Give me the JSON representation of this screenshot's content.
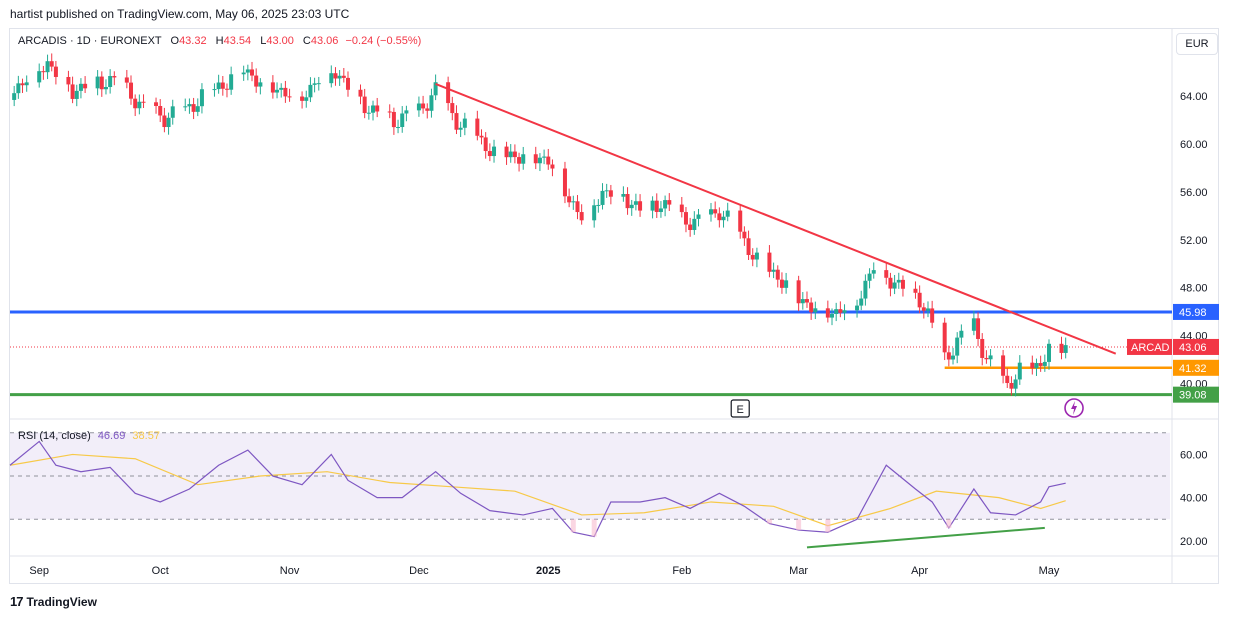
{
  "caption": "hartist published on TradingView.com, May 06, 2025 23:03 UTC",
  "legend": {
    "symbol": "ARCADIS · 1D · EURONEXT",
    "open_label": "O",
    "open": "43.32",
    "high_label": "H",
    "high": "43.54",
    "low_label": "L",
    "low": "43.00",
    "close_label": "C",
    "close": "43.06",
    "change": "−0.24 (−0.55%)"
  },
  "currency": "EUR",
  "rsi_legend": {
    "label": "RSI (14, close)",
    "rsi": "46.69",
    "ma": "38.57"
  },
  "footer": {
    "logo": "17",
    "brand": "TradingView"
  },
  "earnings_marker": "E",
  "colors": {
    "up": "#22ab94",
    "down": "#f23645",
    "trendline": "#f23645",
    "blue_line": "#2962ff",
    "green_line": "#43a047",
    "orange_line": "#ff9800",
    "rsi_line": "#7e57c2",
    "rsi_ma": "#f7c948",
    "rsi_band": "#ede7f6"
  },
  "chart_data": [
    {
      "type": "candlestick",
      "price_ticks": [
        "64.00",
        "60.00",
        "56.00",
        "52.00",
        "48.00",
        "44.00",
        "40.00"
      ],
      "price_tick_values": [
        64,
        60,
        56,
        52,
        48,
        44,
        40
      ],
      "ylim": [
        37.3,
        69.5
      ],
      "x_ticks": [
        "Sep",
        "Oct",
        "Nov",
        "Dec",
        "2025",
        "Feb",
        "Mar",
        "Apr",
        "May"
      ],
      "x_tick_dates": [
        "2024-09-02",
        "2024-10-01",
        "2024-11-01",
        "2024-12-02",
        "2025-01-02",
        "2025-02-03",
        "2025-03-03",
        "2025-04-01",
        "2025-05-02"
      ],
      "xlim": [
        "2024-08-26",
        "2025-05-31"
      ],
      "close_path": [
        {
          "date": "2024-08-26",
          "close": 64.1
        },
        {
          "date": "2024-08-30",
          "close": 65.6
        },
        {
          "date": "2024-09-04",
          "close": 66.8
        },
        {
          "date": "2024-09-10",
          "close": 64.5
        },
        {
          "date": "2024-09-16",
          "close": 65.2
        },
        {
          "date": "2024-09-20",
          "close": 65.4
        },
        {
          "date": "2024-09-24",
          "close": 64.2
        },
        {
          "date": "2024-09-27",
          "close": 63.0
        },
        {
          "date": "2024-10-02",
          "close": 62.3
        },
        {
          "date": "2024-10-07",
          "close": 62.8
        },
        {
          "date": "2024-10-11",
          "close": 64.0
        },
        {
          "date": "2024-10-16",
          "close": 65.0
        },
        {
          "date": "2024-10-21",
          "close": 66.3
        },
        {
          "date": "2024-10-25",
          "close": 65.2
        },
        {
          "date": "2024-10-30",
          "close": 64.5
        },
        {
          "date": "2024-11-04",
          "close": 64.0
        },
        {
          "date": "2024-11-08",
          "close": 65.5
        },
        {
          "date": "2024-11-12",
          "close": 66.2
        },
        {
          "date": "2024-11-15",
          "close": 64.8
        },
        {
          "date": "2024-11-20",
          "close": 63.0
        },
        {
          "date": "2024-11-26",
          "close": 62.0
        },
        {
          "date": "2024-12-02",
          "close": 62.8
        },
        {
          "date": "2024-12-06",
          "close": 64.5
        },
        {
          "date": "2024-12-11",
          "close": 62.0
        },
        {
          "date": "2024-12-16",
          "close": 60.6
        },
        {
          "date": "2024-12-20",
          "close": 59.3
        },
        {
          "date": "2024-12-27",
          "close": 59.0
        },
        {
          "date": "2025-01-02",
          "close": 58.8
        },
        {
          "date": "2025-01-07",
          "close": 55.5
        },
        {
          "date": "2025-01-10",
          "close": 54.0
        },
        {
          "date": "2025-01-15",
          "close": 56.0
        },
        {
          "date": "2025-01-20",
          "close": 55.8
        },
        {
          "date": "2025-01-24",
          "close": 54.5
        },
        {
          "date": "2025-01-29",
          "close": 55.2
        },
        {
          "date": "2025-02-03",
          "close": 53.8
        },
        {
          "date": "2025-02-07",
          "close": 53.5
        },
        {
          "date": "2025-02-12",
          "close": 54.5
        },
        {
          "date": "2025-02-17",
          "close": 52.5
        },
        {
          "date": "2025-02-21",
          "close": 50.3
        },
        {
          "date": "2025-02-26",
          "close": 49.0
        },
        {
          "date": "2025-03-03",
          "close": 47.2
        },
        {
          "date": "2025-03-07",
          "close": 46.3
        },
        {
          "date": "2025-03-12",
          "close": 46.0
        },
        {
          "date": "2025-03-17",
          "close": 47.0
        },
        {
          "date": "2025-03-21",
          "close": 49.8
        },
        {
          "date": "2025-03-26",
          "close": 48.5
        },
        {
          "date": "2025-04-01",
          "close": 47.2
        },
        {
          "date": "2025-04-03",
          "close": 45.8
        },
        {
          "date": "2025-04-07",
          "close": 42.2
        },
        {
          "date": "2025-04-10",
          "close": 43.5
        },
        {
          "date": "2025-04-14",
          "close": 45.0
        },
        {
          "date": "2025-04-17",
          "close": 42.0
        },
        {
          "date": "2025-04-22",
          "close": 40.0
        },
        {
          "date": "2025-04-25",
          "close": 41.0
        },
        {
          "date": "2025-04-29",
          "close": 41.5
        },
        {
          "date": "2025-05-02",
          "close": 42.8
        },
        {
          "date": "2025-05-06",
          "close": 43.06
        }
      ],
      "trendline": {
        "from": {
          "date": "2024-12-06",
          "price": 65.0
        },
        "to": {
          "date": "2025-05-18",
          "price": 42.5
        }
      },
      "levels": [
        {
          "price": 45.98,
          "label": "45.98",
          "color": "#2962ff"
        },
        {
          "price": 41.32,
          "label": "41.32",
          "color": "#ff9800",
          "from": "2025-04-07"
        },
        {
          "price": 39.08,
          "label": "39.08",
          "color": "#43a047"
        }
      ],
      "last_price": {
        "price": 43.06,
        "label": "43.06",
        "tag": "ARCAD"
      }
    },
    {
      "type": "line",
      "name": "RSI (14, close)",
      "yticks": [
        "60.00",
        "40.00",
        "20.00"
      ],
      "ytick_values": [
        60,
        40,
        20
      ],
      "ylim": [
        13,
        75
      ],
      "bands": [
        30,
        50,
        70
      ],
      "rsi": [
        {
          "date": "2024-08-26",
          "v": 55
        },
        {
          "date": "2024-09-02",
          "v": 66
        },
        {
          "date": "2024-09-06",
          "v": 55
        },
        {
          "date": "2024-09-12",
          "v": 52
        },
        {
          "date": "2024-09-19",
          "v": 54
        },
        {
          "date": "2024-09-25",
          "v": 42
        },
        {
          "date": "2024-10-01",
          "v": 38
        },
        {
          "date": "2024-10-08",
          "v": 44
        },
        {
          "date": "2024-10-15",
          "v": 55
        },
        {
          "date": "2024-10-22",
          "v": 62
        },
        {
          "date": "2024-10-28",
          "v": 50
        },
        {
          "date": "2024-11-04",
          "v": 46
        },
        {
          "date": "2024-11-11",
          "v": 60
        },
        {
          "date": "2024-11-15",
          "v": 48
        },
        {
          "date": "2024-11-22",
          "v": 40
        },
        {
          "date": "2024-11-28",
          "v": 40
        },
        {
          "date": "2024-12-06",
          "v": 52
        },
        {
          "date": "2024-12-12",
          "v": 42
        },
        {
          "date": "2024-12-19",
          "v": 34
        },
        {
          "date": "2024-12-27",
          "v": 32
        },
        {
          "date": "2025-01-03",
          "v": 35
        },
        {
          "date": "2025-01-08",
          "v": 24
        },
        {
          "date": "2025-01-13",
          "v": 22
        },
        {
          "date": "2025-01-17",
          "v": 38
        },
        {
          "date": "2025-01-24",
          "v": 38
        },
        {
          "date": "2025-01-30",
          "v": 40
        },
        {
          "date": "2025-02-05",
          "v": 35
        },
        {
          "date": "2025-02-12",
          "v": 42
        },
        {
          "date": "2025-02-18",
          "v": 36
        },
        {
          "date": "2025-02-24",
          "v": 28
        },
        {
          "date": "2025-03-03",
          "v": 25
        },
        {
          "date": "2025-03-10",
          "v": 24
        },
        {
          "date": "2025-03-17",
          "v": 30
        },
        {
          "date": "2025-03-24",
          "v": 55
        },
        {
          "date": "2025-03-31",
          "v": 44
        },
        {
          "date": "2025-04-04",
          "v": 38
        },
        {
          "date": "2025-04-08",
          "v": 26
        },
        {
          "date": "2025-04-14",
          "v": 44
        },
        {
          "date": "2025-04-18",
          "v": 33
        },
        {
          "date": "2025-04-24",
          "v": 32
        },
        {
          "date": "2025-04-30",
          "v": 38
        },
        {
          "date": "2025-05-02",
          "v": 45
        },
        {
          "date": "2025-05-06",
          "v": 46.69
        }
      ],
      "ma": [
        {
          "date": "2024-08-26",
          "v": 55
        },
        {
          "date": "2024-09-10",
          "v": 60
        },
        {
          "date": "2024-09-25",
          "v": 58
        },
        {
          "date": "2024-10-10",
          "v": 46
        },
        {
          "date": "2024-10-25",
          "v": 50
        },
        {
          "date": "2024-11-10",
          "v": 52
        },
        {
          "date": "2024-11-25",
          "v": 47
        },
        {
          "date": "2024-12-10",
          "v": 45
        },
        {
          "date": "2024-12-25",
          "v": 43
        },
        {
          "date": "2025-01-10",
          "v": 32
        },
        {
          "date": "2025-01-25",
          "v": 33
        },
        {
          "date": "2025-02-10",
          "v": 38
        },
        {
          "date": "2025-02-25",
          "v": 36
        },
        {
          "date": "2025-03-10",
          "v": 27
        },
        {
          "date": "2025-03-25",
          "v": 35
        },
        {
          "date": "2025-04-05",
          "v": 43
        },
        {
          "date": "2025-04-20",
          "v": 40
        },
        {
          "date": "2025-04-30",
          "v": 35
        },
        {
          "date": "2025-05-06",
          "v": 38.57
        }
      ],
      "divergence": {
        "from": {
          "date": "2025-03-05",
          "v": 17
        },
        "to": {
          "date": "2025-05-01",
          "v": 26
        }
      }
    }
  ]
}
